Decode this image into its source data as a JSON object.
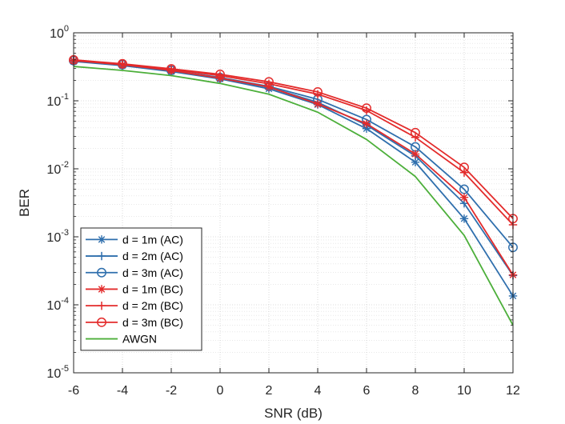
{
  "chart_data": {
    "type": "line",
    "title": "",
    "xlabel": "SNR (dB)",
    "ylabel": "BER",
    "xlim": [
      -6,
      12
    ],
    "ylim": [
      1e-05,
      1
    ],
    "yscale": "log",
    "grid": true,
    "legend_position": "bottom-left",
    "x": [
      -6,
      -4,
      -2,
      0,
      2,
      4,
      6,
      8,
      10,
      12
    ],
    "x_ticks": [
      "-6",
      "-4",
      "-2",
      "0",
      "2",
      "4",
      "6",
      "8",
      "10",
      "12"
    ],
    "y_ticks": [
      {
        "value": 1,
        "base": "10",
        "exp": "0"
      },
      {
        "value": 0.1,
        "base": "10",
        "exp": "-1"
      },
      {
        "value": 0.01,
        "base": "10",
        "exp": "-2"
      },
      {
        "value": 0.001,
        "base": "10",
        "exp": "-3"
      },
      {
        "value": 0.0001,
        "base": "10",
        "exp": "-4"
      },
      {
        "value": 1e-05,
        "base": "10",
        "exp": "-5"
      }
    ],
    "series": [
      {
        "name": "d = 1m (AC)",
        "color": "#2f6fad",
        "marker": "asterisk",
        "values": [
          0.38,
          0.33,
          0.27,
          0.21,
          0.15,
          0.088,
          0.039,
          0.0125,
          0.00185,
          0.000135
        ]
      },
      {
        "name": "d = 2m (AC)",
        "color": "#2f6fad",
        "marker": "plus",
        "values": [
          0.385,
          0.335,
          0.275,
          0.215,
          0.158,
          0.095,
          0.044,
          0.0155,
          0.0031,
          0.00027
        ]
      },
      {
        "name": "d = 3m (AC)",
        "color": "#2f6fad",
        "marker": "circle",
        "values": [
          0.39,
          0.34,
          0.28,
          0.22,
          0.163,
          0.105,
          0.053,
          0.021,
          0.005,
          0.0007
        ]
      },
      {
        "name": "d = 1m (BC)",
        "color": "#e32b2b",
        "marker": "asterisk",
        "values": [
          0.39,
          0.34,
          0.28,
          0.215,
          0.16,
          0.09,
          0.046,
          0.0165,
          0.0038,
          0.000275
        ]
      },
      {
        "name": "d = 2m (BC)",
        "color": "#e32b2b",
        "marker": "plus",
        "values": [
          0.395,
          0.345,
          0.29,
          0.235,
          0.178,
          0.125,
          0.072,
          0.029,
          0.0088,
          0.0015
        ]
      },
      {
        "name": "d = 3m (BC)",
        "color": "#e32b2b",
        "marker": "circle",
        "values": [
          0.4,
          0.35,
          0.295,
          0.245,
          0.19,
          0.135,
          0.078,
          0.034,
          0.0105,
          0.00185
        ]
      },
      {
        "name": "AWGN",
        "color": "#4caf3a",
        "marker": "none",
        "values": [
          0.32,
          0.28,
          0.235,
          0.18,
          0.125,
          0.068,
          0.027,
          0.0077,
          0.00105,
          5e-05
        ]
      }
    ]
  }
}
